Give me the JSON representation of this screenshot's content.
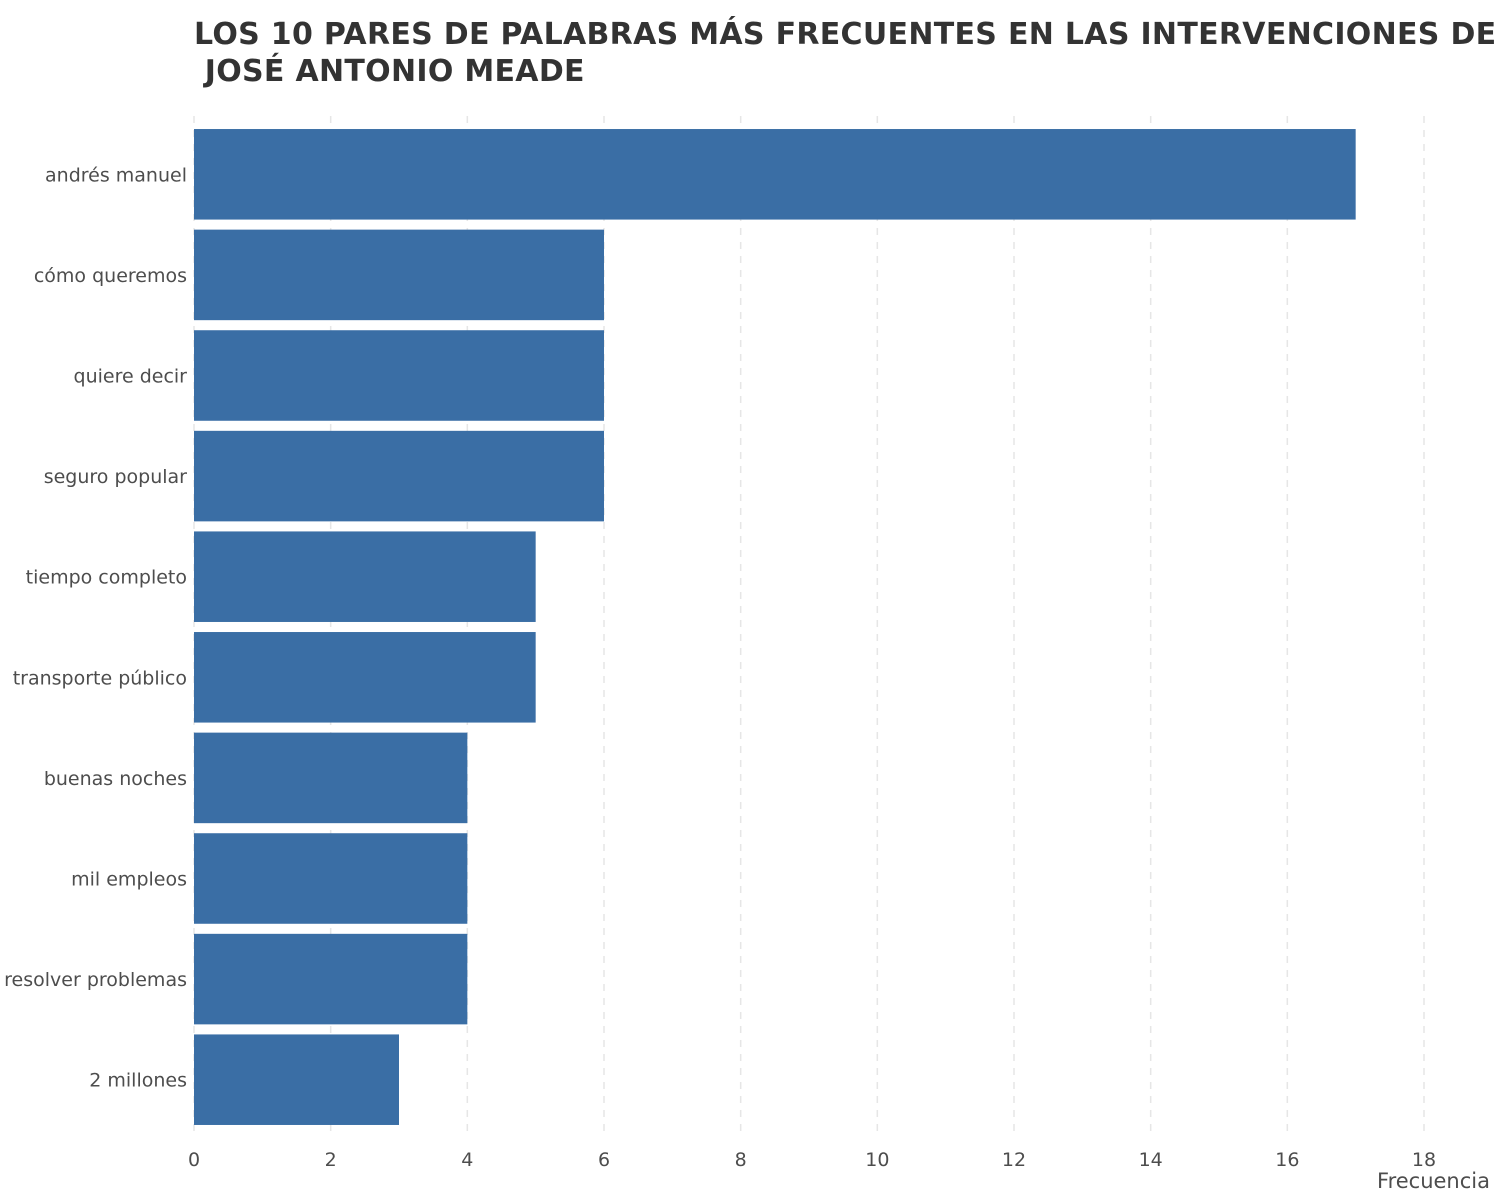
{
  "chart_data": {
    "type": "bar",
    "orientation": "horizontal",
    "title_lines": [
      "LOS 10 PARES DE PALABRAS MÁS FRECUENTES EN LAS INTERVENCIONES DE",
      " JOSÉ ANTONIO MEADE"
    ],
    "categories": [
      "andrés manuel",
      "cómo queremos",
      "quiere decir",
      "seguro popular",
      "tiempo completo",
      "transporte público",
      "buenas noches",
      "mil empleos",
      "resolver problemas",
      "2 millones"
    ],
    "values": [
      17,
      6,
      6,
      6,
      5,
      5,
      4,
      4,
      4,
      3
    ],
    "xlabel": "Frecuencia",
    "ylabel": "",
    "xlim": [
      0,
      18
    ],
    "xticks": [
      "0",
      "2",
      "4",
      "6",
      "8",
      "10",
      "12",
      "14",
      "16",
      "18"
    ],
    "grid": "vertical dashed",
    "bar_color": "#3a6ea5",
    "grid_color": "#e6e6e6"
  }
}
